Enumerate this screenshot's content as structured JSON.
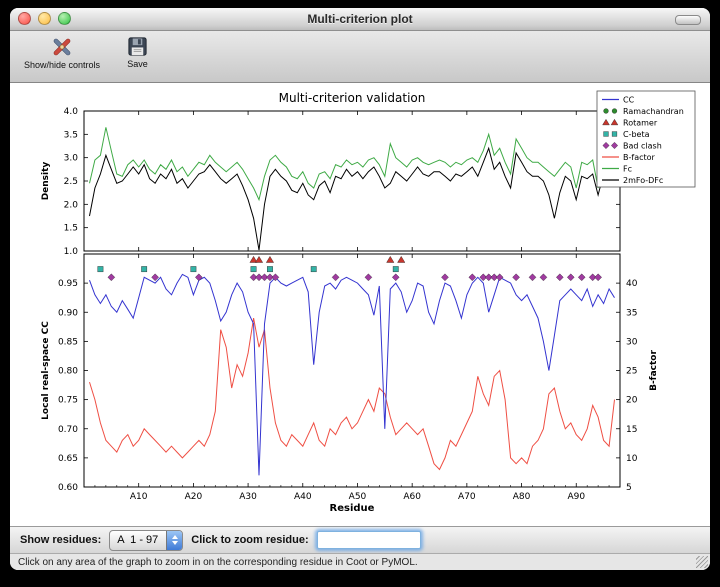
{
  "window": {
    "title": "Multi-criterion plot"
  },
  "toolbar": {
    "items": [
      {
        "label": "Show/hide controls"
      },
      {
        "label": "Save"
      }
    ]
  },
  "controls": {
    "show_residues_label": "Show residues:",
    "residue_range_value": "A  1 - 97",
    "zoom_label": "Click to zoom residue:",
    "zoom_input_value": ""
  },
  "status_bar": {
    "text": "Click on any area of the graph to zoom in on the corresponding residue in Coot or PyMOL."
  },
  "chart_data": {
    "type": "line",
    "title": "Multi-criterion validation",
    "xlabel": "Residue",
    "x_range": [
      0,
      98
    ],
    "x_ticks": [
      {
        "v": 10,
        "label": "A10"
      },
      {
        "v": 20,
        "label": "A20"
      },
      {
        "v": 30,
        "label": "A30"
      },
      {
        "v": 40,
        "label": "A40"
      },
      {
        "v": 50,
        "label": "A50"
      },
      {
        "v": 60,
        "label": "A60"
      },
      {
        "v": 70,
        "label": "A70"
      },
      {
        "v": 80,
        "label": "A80"
      },
      {
        "v": 90,
        "label": "A90"
      }
    ],
    "top_plot": {
      "ylabel": "Density",
      "ylim": [
        1.0,
        4.0
      ],
      "yticks": [
        1.0,
        1.5,
        2.0,
        2.5,
        3.0,
        3.5,
        4.0
      ],
      "series": [
        {
          "name": "Fc",
          "color": "#3faa46",
          "values": [
            2.45,
            2.95,
            3.05,
            3.65,
            3.15,
            2.65,
            2.6,
            2.85,
            2.95,
            2.8,
            2.95,
            2.75,
            2.65,
            2.85,
            2.75,
            2.95,
            2.7,
            2.8,
            2.6,
            2.75,
            2.9,
            2.85,
            3.05,
            2.9,
            2.8,
            2.7,
            2.8,
            2.9,
            2.75,
            2.55,
            2.35,
            2.1,
            2.6,
            2.95,
            3.05,
            2.9,
            2.8,
            2.6,
            2.55,
            2.7,
            2.45,
            2.35,
            2.65,
            2.7,
            2.55,
            2.85,
            2.8,
            2.95,
            2.85,
            2.9,
            2.8,
            2.95,
            3.0,
            2.85,
            2.6,
            3.3,
            3.0,
            2.9,
            2.8,
            2.95,
            3.0,
            2.9,
            2.85,
            2.9,
            2.95,
            2.9,
            2.8,
            2.9,
            2.85,
            2.95,
            3.0,
            2.9,
            3.15,
            3.5,
            3.05,
            3.2,
            2.9,
            2.65,
            3.4,
            3.2,
            3.0,
            2.9,
            2.9,
            2.8,
            2.7,
            2.6,
            2.75,
            2.9,
            2.8,
            2.35,
            2.9,
            2.85,
            2.95,
            2.35,
            2.95,
            3.05,
            3.45
          ]
        },
        {
          "name": "2mFo-DFc",
          "color": "#000000",
          "values": [
            1.75,
            2.35,
            2.65,
            3.05,
            2.75,
            2.45,
            2.5,
            2.65,
            2.8,
            2.65,
            2.85,
            2.55,
            2.45,
            2.65,
            2.55,
            2.75,
            2.45,
            2.55,
            2.35,
            2.5,
            2.65,
            2.7,
            2.85,
            2.7,
            2.55,
            2.45,
            2.55,
            2.65,
            2.4,
            2.1,
            1.7,
            1.02,
            2.0,
            2.6,
            2.75,
            2.6,
            2.5,
            2.3,
            2.25,
            2.45,
            2.2,
            2.1,
            2.4,
            2.5,
            2.25,
            2.6,
            2.55,
            2.75,
            2.6,
            2.7,
            2.55,
            2.7,
            2.8,
            2.6,
            2.35,
            2.45,
            2.7,
            2.6,
            2.5,
            2.65,
            2.8,
            2.65,
            2.6,
            2.7,
            2.7,
            2.6,
            2.5,
            2.65,
            2.6,
            2.7,
            2.8,
            2.6,
            2.9,
            3.2,
            2.75,
            2.9,
            2.6,
            2.35,
            3.1,
            2.9,
            2.7,
            2.6,
            2.6,
            2.5,
            2.2,
            1.7,
            2.25,
            2.6,
            2.5,
            2.1,
            2.6,
            2.55,
            2.65,
            2.2,
            2.65,
            2.75,
            2.9
          ]
        }
      ]
    },
    "bottom_plot": {
      "ylabel_left": "Local real-space CC",
      "ylim_left": [
        0.6,
        1.0
      ],
      "yticks_left": [
        0.6,
        0.65,
        0.7,
        0.75,
        0.8,
        0.85,
        0.9,
        0.95
      ],
      "ylabel_right": "B-factor",
      "ylim_right": [
        5,
        45
      ],
      "yticks_right": [
        5,
        10,
        15,
        20,
        25,
        30,
        35,
        40
      ],
      "series_left": [
        {
          "name": "CC",
          "color": "#3434d0",
          "values": [
            0.955,
            0.93,
            0.915,
            0.93,
            0.91,
            0.9,
            0.92,
            0.905,
            0.89,
            0.925,
            0.96,
            0.955,
            0.95,
            0.96,
            0.94,
            0.93,
            0.95,
            0.965,
            0.96,
            0.93,
            0.955,
            0.96,
            0.95,
            0.92,
            0.885,
            0.9,
            0.93,
            0.95,
            0.935,
            0.9,
            0.88,
            0.62,
            0.88,
            0.95,
            0.96,
            0.95,
            0.945,
            0.95,
            0.955,
            0.96,
            0.935,
            0.81,
            0.9,
            0.945,
            0.95,
            0.94,
            0.955,
            0.96,
            0.955,
            0.95,
            0.94,
            0.93,
            0.895,
            0.945,
            0.7,
            0.94,
            0.95,
            0.935,
            0.9,
            0.92,
            0.95,
            0.945,
            0.9,
            0.88,
            0.92,
            0.95,
            0.945,
            0.92,
            0.89,
            0.93,
            0.95,
            0.96,
            0.95,
            0.9,
            0.93,
            0.96,
            0.955,
            0.95,
            0.93,
            0.92,
            0.93,
            0.91,
            0.89,
            0.85,
            0.8,
            0.86,
            0.92,
            0.93,
            0.94,
            0.93,
            0.92,
            0.94,
            0.91,
            0.93,
            0.915,
            0.94,
            0.925
          ]
        }
      ],
      "series_right": [
        {
          "name": "B-factor",
          "color": "#ef4f44",
          "values": [
            23,
            20,
            16,
            13,
            12,
            11,
            13,
            14,
            12,
            13,
            15,
            14,
            13,
            12,
            11,
            12,
            11,
            10,
            11,
            12,
            13,
            12,
            14,
            18,
            32,
            29,
            22,
            26,
            24,
            28,
            34,
            29,
            32,
            22,
            16,
            13,
            12,
            14,
            13,
            12,
            14,
            16,
            13,
            12,
            15,
            14,
            16,
            17,
            15,
            16,
            18,
            20,
            18,
            22,
            21,
            17,
            14,
            15,
            16,
            15,
            14,
            15,
            12,
            9,
            8,
            10,
            13,
            12,
            14,
            16,
            18,
            24,
            21,
            19,
            24,
            25,
            20,
            10,
            9,
            10,
            9,
            12,
            13,
            15,
            21,
            22,
            18,
            15,
            16,
            14,
            13,
            15,
            19,
            17,
            13,
            12,
            20
          ]
        }
      ],
      "markers": [
        {
          "name": "Rotamer",
          "shape": "triangle",
          "color": "#c9362d",
          "y": 0.99,
          "residues": [
            31,
            32,
            34,
            56,
            58
          ]
        },
        {
          "name": "C-beta",
          "shape": "square",
          "color": "#33b3a6",
          "y": 0.974,
          "residues": [
            3,
            11,
            20,
            31,
            34,
            42,
            57
          ]
        },
        {
          "name": "Bad clash",
          "shape": "diamond",
          "color": "#a03ba0",
          "y": 0.96,
          "residues": [
            5,
            13,
            21,
            31,
            32,
            33,
            34,
            35,
            46,
            52,
            57,
            66,
            71,
            73,
            74,
            75,
            76,
            79,
            82,
            84,
            87,
            89,
            91,
            93,
            94
          ]
        }
      ]
    },
    "legend": [
      {
        "label": "CC",
        "type": "line",
        "color": "#3434d0"
      },
      {
        "label": "Ramachandran",
        "type": "circle",
        "color": "#2e8b2e"
      },
      {
        "label": "Rotamer",
        "type": "triangle",
        "color": "#c9362d"
      },
      {
        "label": "C-beta",
        "type": "square",
        "color": "#33b3a6"
      },
      {
        "label": "Bad clash",
        "type": "diamond",
        "color": "#a03ba0"
      },
      {
        "label": "B-factor",
        "type": "line",
        "color": "#ef4f44"
      },
      {
        "label": "Fc",
        "type": "line",
        "color": "#3faa46"
      },
      {
        "label": "2mFo-DFc",
        "type": "line",
        "color": "#000000"
      }
    ]
  }
}
